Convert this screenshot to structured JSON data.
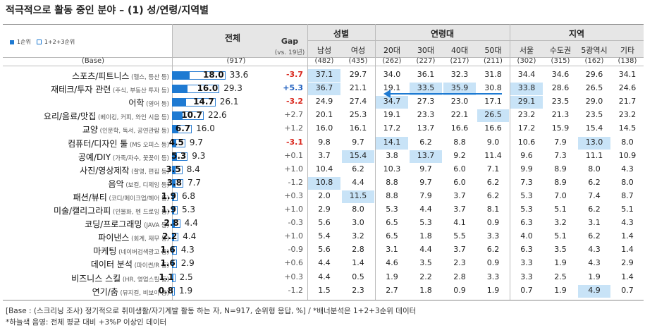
{
  "title": "적극적으로 활동 중인 분야 – (1) 성/연령/지역별",
  "legend": {
    "first": "1순위",
    "all": "1+2+3순위"
  },
  "header": {
    "total": "전체",
    "gap": "Gap",
    "gap_note": "(vs. 19년)",
    "groups": [
      {
        "label": "성별",
        "cols": [
          "남성",
          "여성"
        ]
      },
      {
        "label": "연령대",
        "cols": [
          "20대",
          "30대",
          "40대",
          "50대"
        ]
      },
      {
        "label": "지역",
        "cols": [
          "서울",
          "수도권",
          "5광역시",
          "기타"
        ]
      }
    ],
    "base_label": "(Base)",
    "base_total": "(917)",
    "base_cols": [
      "(482)",
      "(435)",
      "(262)",
      "(227)",
      "(217)",
      "(211)",
      "(302)",
      "(315)",
      "(162)",
      "(138)"
    ]
  },
  "colors": {
    "bar": "#1e7ad2",
    "highlight": "#c8e3f7",
    "gap_up": "#1f5fbf",
    "gap_down": "#d9261c",
    "header_bg": "#e6e6e6",
    "arrow": "#1e7ad2"
  },
  "chart_data": {
    "type": "bar",
    "categories": [
      "스포츠/피트니스",
      "재테크/투자 관련",
      "어학",
      "요리/음료/맛집",
      "교양",
      "컴퓨터/디자인 툴",
      "공예/DIY",
      "사진/영상제작",
      "음악",
      "패션/뷰티",
      "미술/캘리그라피",
      "코딩/프로그래밍",
      "파이낸스",
      "마케팅",
      "데이터 분석",
      "비즈니스 스킬",
      "연기/춤"
    ],
    "category_notes": [
      "(헬스, 등산 등)",
      "(주식, 부동산 투자 등)",
      "(영어 등)",
      "(베이킹, 커피, 와인 시음 등)",
      "(인문학, 독서, 공연관람 등)",
      "(MS 오피스 등)",
      "(가죽/자수, 꽃꽂이 등)",
      "(촬영, 편집 등)",
      "(보컬, 디제잉 등)",
      "(코디/메이크업/헤어 등)",
      "(인물화, 펜 드로잉 등)",
      "(JAVA 등)",
      "(회계, 재무 등)",
      "(네이버검색광고 등)",
      "(파이썬/R 등)",
      "(HR, 영업스킬 등)",
      "(뮤지컬, 비보이 등)"
    ],
    "series": [
      {
        "name": "1순위",
        "values": [
          18.0,
          16.0,
          14.7,
          10.7,
          6.7,
          4.5,
          5.3,
          3.5,
          3.8,
          1.9,
          1.9,
          2.8,
          2.2,
          1.6,
          1.6,
          1.1,
          0.8
        ]
      },
      {
        "name": "1+2+3순위",
        "values": [
          33.6,
          29.3,
          26.1,
          22.6,
          16.0,
          9.7,
          9.3,
          8.4,
          7.7,
          6.8,
          5.3,
          4.4,
          4.4,
          4.3,
          2.9,
          2.5,
          1.9
        ]
      }
    ],
    "gap": [
      "-3.7",
      "+5.3",
      "-3.2",
      "+2.7",
      "+1.2",
      "-3.1",
      "+0.1",
      "+1.0",
      "-1.2",
      "+0.3",
      "+1.0",
      "-0.3",
      "+1.0",
      "-0.9",
      "+0.6",
      "+0.3",
      "-1.2"
    ],
    "gap_bold": [
      true,
      true,
      true,
      false,
      false,
      true,
      false,
      false,
      false,
      false,
      false,
      false,
      false,
      false,
      false,
      false,
      false
    ],
    "table": [
      [
        37.1,
        29.7,
        34.0,
        36.1,
        32.3,
        31.8,
        34.4,
        34.6,
        29.6,
        34.1
      ],
      [
        36.7,
        21.1,
        19.1,
        33.5,
        35.9,
        30.8,
        33.8,
        28.6,
        26.5,
        24.6
      ],
      [
        24.9,
        27.4,
        34.7,
        27.3,
        23.0,
        17.1,
        29.1,
        23.5,
        29.0,
        21.7
      ],
      [
        20.1,
        25.3,
        19.1,
        23.3,
        22.1,
        26.5,
        23.2,
        21.3,
        23.5,
        23.2
      ],
      [
        16.0,
        16.1,
        17.2,
        13.7,
        16.6,
        16.6,
        17.2,
        15.9,
        15.4,
        14.5
      ],
      [
        9.8,
        9.7,
        14.1,
        6.2,
        8.8,
        9.0,
        10.6,
        7.9,
        13.0,
        8.0
      ],
      [
        3.7,
        15.4,
        3.8,
        13.7,
        9.2,
        11.4,
        9.6,
        7.3,
        11.1,
        10.9
      ],
      [
        10.4,
        6.2,
        10.3,
        9.7,
        6.0,
        7.1,
        9.9,
        8.9,
        8.0,
        4.3
      ],
      [
        10.8,
        4.4,
        8.8,
        9.7,
        6.0,
        6.2,
        7.3,
        8.9,
        6.2,
        8.0
      ],
      [
        2.0,
        11.5,
        8.8,
        7.9,
        3.7,
        6.2,
        5.3,
        7.0,
        7.4,
        8.7
      ],
      [
        2.9,
        8.0,
        5.3,
        4.4,
        3.7,
        8.1,
        5.3,
        5.1,
        6.2,
        5.1
      ],
      [
        5.6,
        3.0,
        6.5,
        5.3,
        4.1,
        0.9,
        6.3,
        3.2,
        3.1,
        4.3
      ],
      [
        5.4,
        3.2,
        6.5,
        1.8,
        5.5,
        3.3,
        4.0,
        5.1,
        6.2,
        1.4
      ],
      [
        5.6,
        2.8,
        3.1,
        4.4,
        3.7,
        6.2,
        6.3,
        3.5,
        4.3,
        1.4
      ],
      [
        4.4,
        1.4,
        4.6,
        3.5,
        2.3,
        0.9,
        3.3,
        1.9,
        4.3,
        2.9
      ],
      [
        4.4,
        0.5,
        1.9,
        2.2,
        2.8,
        3.3,
        3.3,
        2.5,
        1.9,
        1.4
      ],
      [
        1.5,
        2.3,
        2.7,
        1.8,
        0.9,
        1.9,
        0.7,
        1.9,
        4.9,
        0.7
      ]
    ],
    "highlight": [
      [
        0
      ],
      [
        0,
        3,
        4,
        6
      ],
      [
        2,
        6
      ],
      [
        5
      ],
      [],
      [
        2,
        8
      ],
      [
        1,
        3
      ],
      [],
      [
        0
      ],
      [
        1
      ],
      [],
      [],
      [],
      [],
      [],
      [],
      [
        8
      ]
    ],
    "xlim": [
      0,
      40
    ]
  },
  "footer": {
    "line1": "[Base : (스크리닝 조사) 정기적으로 취미생활/자기계발 활동 하는 자, N=917, 순위형 응답, %] / *배너분석은 1+2+3순위 데이터",
    "line2": "*하늘색 음영: 전체 평균 대비 +3%P 이상인 데이터"
  }
}
